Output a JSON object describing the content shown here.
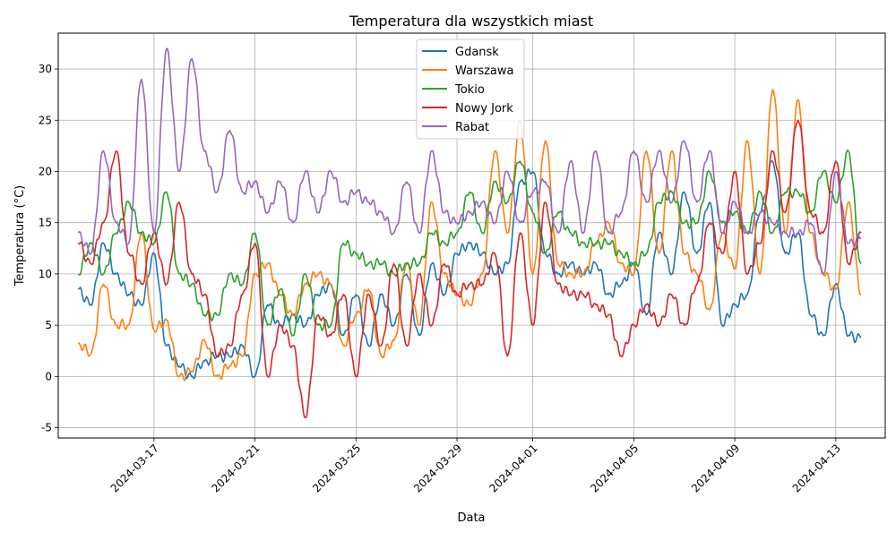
{
  "chart_data": {
    "type": "line",
    "title": "Temperatura dla wszystkich miast",
    "xlabel": "Data",
    "ylabel": "Temperatura (°C)",
    "xlim": [
      "2024-03-13T05:00",
      "2024-04-14T23:00"
    ],
    "ylim": [
      -6,
      33.5
    ],
    "x_ticks": [
      "2024-03-17",
      "2024-03-21",
      "2024-03-25",
      "2024-03-29",
      "2024-04-01",
      "2024-04-05",
      "2024-04-09",
      "2024-04-13"
    ],
    "y_ticks": [
      -5,
      0,
      5,
      10,
      15,
      20,
      25,
      30
    ],
    "grid": true,
    "legend_position": "top-center",
    "x": [
      "2024-03-14",
      "2024-03-14T12",
      "2024-03-15",
      "2024-03-15T12",
      "2024-03-16",
      "2024-03-16T12",
      "2024-03-17",
      "2024-03-17T12",
      "2024-03-18",
      "2024-03-18T12",
      "2024-03-19",
      "2024-03-19T12",
      "2024-03-20",
      "2024-03-20T12",
      "2024-03-21",
      "2024-03-21T12",
      "2024-03-22",
      "2024-03-22T12",
      "2024-03-23",
      "2024-03-23T12",
      "2024-03-24",
      "2024-03-24T12",
      "2024-03-25",
      "2024-03-25T12",
      "2024-03-26",
      "2024-03-26T12",
      "2024-03-27",
      "2024-03-27T12",
      "2024-03-28",
      "2024-03-28T12",
      "2024-03-29",
      "2024-03-29T12",
      "2024-03-30",
      "2024-03-30T12",
      "2024-03-31",
      "2024-03-31T12",
      "2024-04-01",
      "2024-04-01T12",
      "2024-04-02",
      "2024-04-02T12",
      "2024-04-03",
      "2024-04-03T12",
      "2024-04-04",
      "2024-04-04T12",
      "2024-04-05",
      "2024-04-05T12",
      "2024-04-06",
      "2024-04-06T12",
      "2024-04-07",
      "2024-04-07T12",
      "2024-04-08",
      "2024-04-08T12",
      "2024-04-09",
      "2024-04-09T12",
      "2024-04-10",
      "2024-04-10T12",
      "2024-04-11",
      "2024-04-11T12",
      "2024-04-12",
      "2024-04-12T12",
      "2024-04-13",
      "2024-04-13T12",
      "2024-04-14"
    ],
    "series": [
      {
        "name": "Gdansk",
        "color": "#1f77b4",
        "values": [
          8.5,
          7,
          13,
          10,
          8,
          7,
          12,
          3,
          1,
          0,
          1.5,
          2,
          2,
          3,
          0,
          7,
          5,
          6,
          5,
          8,
          9,
          4,
          8,
          3,
          8,
          5,
          10,
          4,
          11,
          8,
          12,
          13,
          12,
          10,
          11,
          19,
          20,
          12,
          10,
          11,
          10,
          11,
          8,
          9,
          11,
          6,
          14,
          10,
          18,
          12,
          17,
          5,
          7,
          8,
          16,
          21,
          12,
          14,
          6,
          4,
          9,
          4,
          3.8
        ]
      },
      {
        "name": "Warszawa",
        "color": "#ff7f0e",
        "values": [
          3.2,
          2.2,
          9,
          5,
          5,
          14,
          4.5,
          5.5,
          0,
          0.5,
          3.5,
          0,
          1,
          2,
          10,
          11,
          8,
          6,
          9,
          10,
          9,
          3,
          6,
          8.5,
          2,
          3.5,
          11,
          5,
          17,
          10,
          8,
          7,
          10,
          22,
          14,
          25,
          10,
          23,
          11,
          10,
          10,
          13,
          15,
          11,
          10,
          22,
          12,
          22,
          12,
          10,
          6.5,
          14,
          10.5,
          23,
          10,
          28,
          14,
          27,
          14,
          10,
          8.5,
          17,
          8
        ]
      },
      {
        "name": "Tokio",
        "color": "#2ca02c",
        "values": [
          10,
          13,
          10,
          14,
          17,
          14,
          13,
          18,
          10,
          9,
          6,
          6,
          10,
          9,
          14,
          5,
          8.5,
          4,
          10,
          5,
          5,
          13,
          12,
          11,
          11,
          10,
          11,
          11,
          14,
          13,
          14,
          18,
          14,
          19,
          17,
          21,
          16,
          12,
          16,
          14,
          13,
          13,
          13,
          12,
          11,
          12,
          17,
          18,
          15,
          15,
          20,
          15,
          16,
          14,
          18,
          14,
          18,
          18,
          16,
          20,
          17,
          22,
          11
        ]
      },
      {
        "name": "Nowy Jork",
        "color": "#d62728",
        "values": [
          13,
          11,
          15,
          22,
          12,
          9,
          14,
          9,
          17,
          10,
          8,
          2,
          3,
          8,
          13,
          0,
          5,
          3,
          -4,
          6,
          4,
          8,
          0,
          8,
          3,
          11,
          3,
          10,
          5,
          11,
          8,
          9,
          9,
          12,
          2,
          14,
          5,
          17,
          9,
          8,
          8,
          7,
          6,
          2,
          5,
          7,
          5,
          8,
          5,
          9,
          15,
          12,
          20,
          10,
          13,
          22,
          16,
          25,
          16,
          14,
          21,
          11,
          14
        ]
      },
      {
        "name": "Rabat",
        "color": "#9467bd",
        "values": [
          14,
          12,
          22,
          15,
          13,
          29,
          14,
          32,
          20,
          31,
          22,
          18,
          24,
          18,
          19,
          16,
          19,
          15,
          20,
          16,
          20,
          17,
          18,
          17,
          16,
          14,
          19,
          14,
          22,
          16,
          15,
          16,
          17,
          15,
          20,
          15,
          18,
          19,
          14,
          21,
          14,
          22,
          14,
          16,
          22,
          17,
          22,
          17,
          23,
          17,
          22,
          14,
          17,
          14,
          16,
          15,
          14,
          14,
          15,
          10,
          20,
          13,
          13.5
        ]
      }
    ]
  }
}
